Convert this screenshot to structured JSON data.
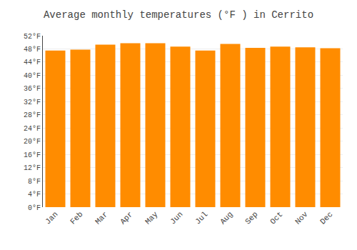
{
  "chart_data": {
    "type": "bar",
    "title": "Average monthly temperatures (°F ) in Cerrito",
    "categories": [
      "Jan",
      "Feb",
      "Mar",
      "Apr",
      "May",
      "Jun",
      "Jul",
      "Aug",
      "Sep",
      "Oct",
      "Nov",
      "Dec"
    ],
    "values": [
      47.5,
      47.8,
      49.3,
      49.7,
      49.7,
      48.7,
      47.5,
      49.5,
      48.3,
      48.7,
      48.5,
      48.2
    ],
    "color": "#FF8C00",
    "ylim": [
      0,
      52
    ],
    "yticks": [
      {
        "value": 0,
        "label": "0°F"
      },
      {
        "value": 4,
        "label": "4°F"
      },
      {
        "value": 8,
        "label": "8°F"
      },
      {
        "value": 12,
        "label": "12°F"
      },
      {
        "value": 16,
        "label": "16°F"
      },
      {
        "value": 20,
        "label": "20°F"
      },
      {
        "value": 24,
        "label": "24°F"
      },
      {
        "value": 28,
        "label": "28°F"
      },
      {
        "value": 32,
        "label": "32°F"
      },
      {
        "value": 36,
        "label": "36°F"
      },
      {
        "value": 40,
        "label": "40°F"
      },
      {
        "value": 44,
        "label": "44°F"
      },
      {
        "value": 48,
        "label": "48°F"
      },
      {
        "value": 52,
        "label": "52°F"
      }
    ],
    "grid": true
  }
}
